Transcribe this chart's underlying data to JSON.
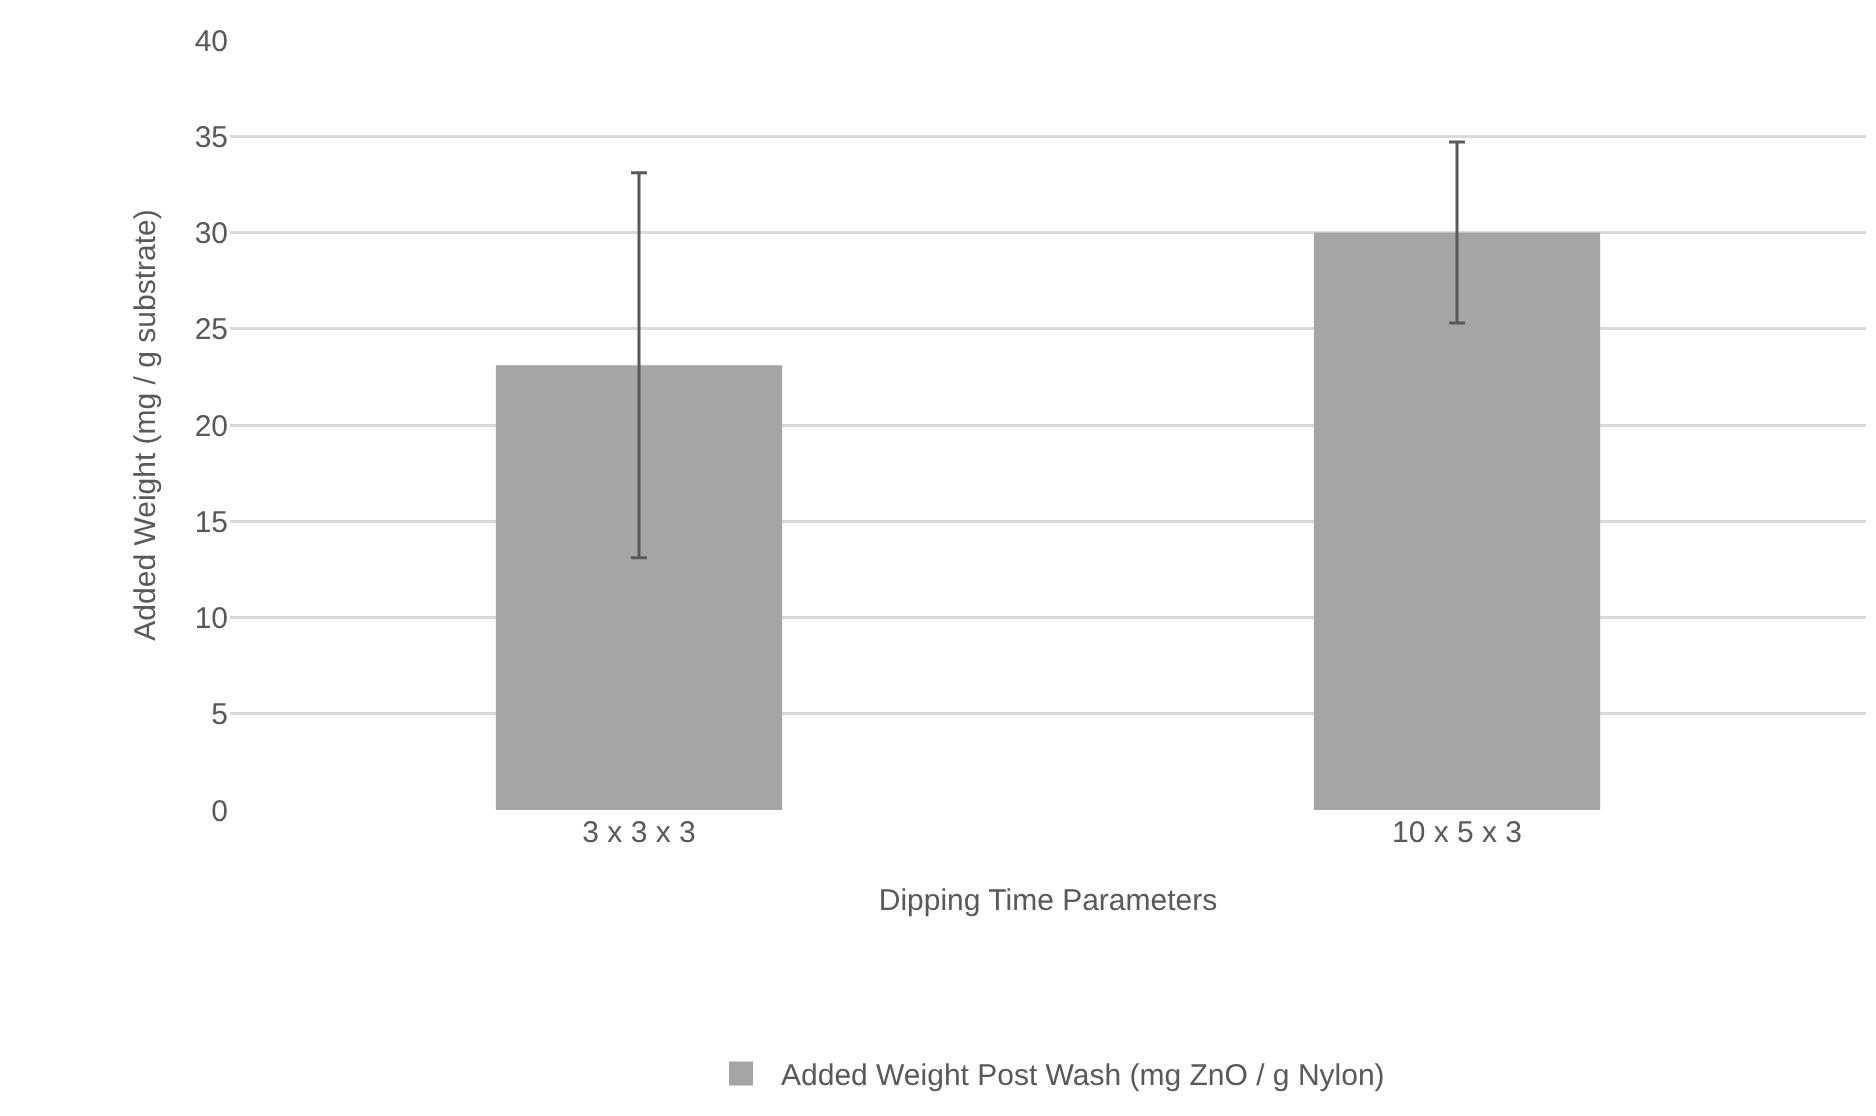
{
  "chart_data": {
    "type": "bar",
    "xlabel": "Dipping Time Parameters",
    "ylabel": "Added Weight (mg / g substrate)",
    "categories": [
      "3 x 3 x 3",
      "10 x 5 x 3"
    ],
    "series": [
      {
        "name": "Added Weight Post Wash (mg ZnO / g Nylon)",
        "color": "#a5a5a5",
        "values": [
          23.1,
          30.0
        ],
        "errors": [
          10.0,
          4.7
        ]
      }
    ],
    "ylim": [
      0,
      40
    ],
    "yticks": [
      0,
      5,
      10,
      15,
      20,
      25,
      30,
      35,
      40
    ],
    "grid": "y",
    "legend": "bottom"
  }
}
